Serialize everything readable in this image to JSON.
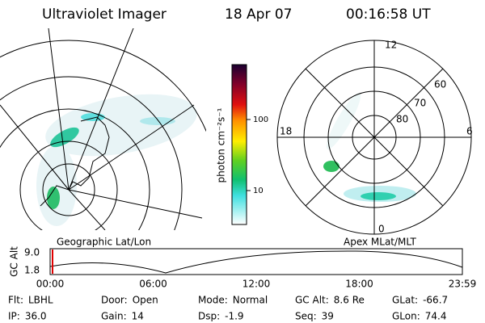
{
  "header": {
    "instrument": "Ultraviolet Imager",
    "date": "18 Apr 07",
    "time": "00:16:58 UT"
  },
  "colorbar": {
    "label": "photon cm⁻²s⁻¹",
    "ticks": [
      "100",
      "10"
    ]
  },
  "left_panel": {
    "caption": "Geographic Lat/Lon"
  },
  "right_panel": {
    "caption": "Apex MLat/MLT",
    "mlt_labels": [
      "12",
      "18",
      "6",
      "0"
    ],
    "lat_labels": [
      "60",
      "70",
      "80"
    ]
  },
  "timeline": {
    "axis_label": "GC Alt",
    "y_labels": [
      "9.0",
      "1.8"
    ],
    "x_labels": [
      "00:00",
      "06:00",
      "12:00",
      "18:00",
      "23:59"
    ]
  },
  "footer": {
    "rows": [
      [
        {
          "label": "Flt:",
          "value": "LBHL"
        },
        {
          "label": "Door:",
          "value": "Open"
        },
        {
          "label": "Mode:",
          "value": "Normal"
        },
        {
          "label": "GC Alt:",
          "value": "8.6 Re"
        },
        {
          "label": "GLat:",
          "value": "-66.7"
        }
      ],
      [
        {
          "label": "IP:",
          "value": "36.0"
        },
        {
          "label": "Gain:",
          "value": "14"
        },
        {
          "label": "Dsp:",
          "value": "-1.9"
        },
        {
          "label": "Seq:",
          "value": "39"
        },
        {
          "label": "GLon:",
          "value": "74.4"
        }
      ]
    ]
  }
}
